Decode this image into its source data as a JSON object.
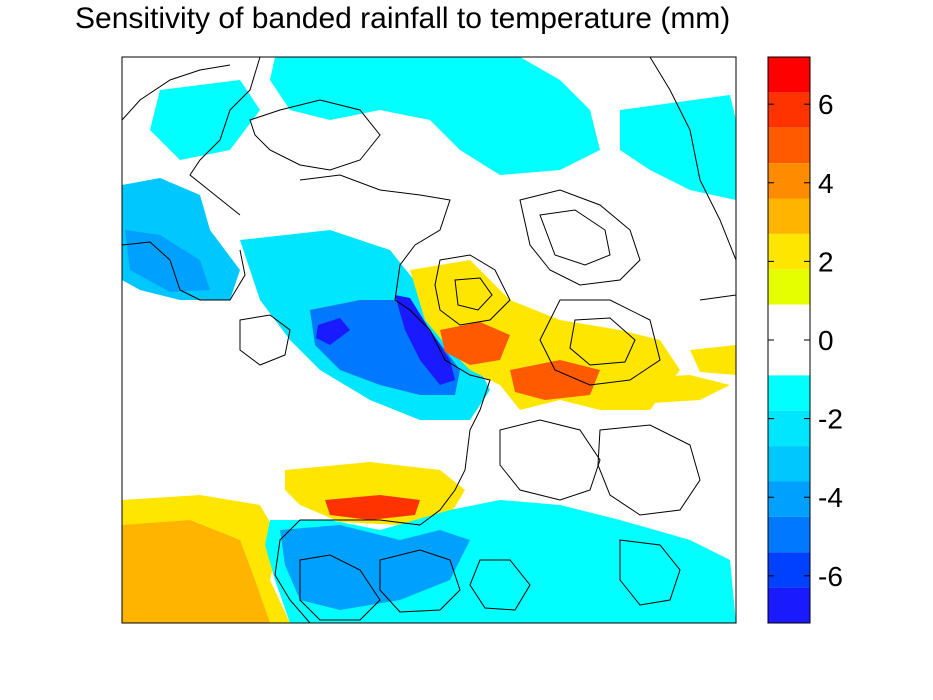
{
  "chart_data": {
    "type": "heatmap",
    "title": "Sensitivity of banded rainfall to temperature (mm)",
    "xlabel": "",
    "ylabel": "",
    "colorbar": {
      "range": [
        -7,
        7
      ],
      "ticks": [
        6,
        4,
        2,
        0,
        -2,
        -4,
        -6
      ],
      "tick_labels": [
        "6",
        "4",
        "2",
        "0",
        "-2",
        "-4",
        "-6"
      ],
      "bands": [
        {
          "from": 6.3,
          "to": 7.2,
          "color": "#ff0000"
        },
        {
          "from": 5.4,
          "to": 6.3,
          "color": "#ff3300"
        },
        {
          "from": 4.5,
          "to": 5.4,
          "color": "#ff5a00"
        },
        {
          "from": 3.6,
          "to": 4.5,
          "color": "#ff8c00"
        },
        {
          "from": 2.7,
          "to": 3.6,
          "color": "#ffb400"
        },
        {
          "from": 1.8,
          "to": 2.7,
          "color": "#ffe600"
        },
        {
          "from": 0.9,
          "to": 1.8,
          "color": "#e6ff00"
        },
        {
          "from": -0.9,
          "to": 0.9,
          "color": "#ffffff"
        },
        {
          "from": -1.8,
          "to": -0.9,
          "color": "#00ffff"
        },
        {
          "from": -2.7,
          "to": -1.8,
          "color": "#00e6ff"
        },
        {
          "from": -3.6,
          "to": -2.7,
          "color": "#00c8ff"
        },
        {
          "from": -4.5,
          "to": -3.6,
          "color": "#00a0ff"
        },
        {
          "from": -5.4,
          "to": -4.5,
          "color": "#0078ff"
        },
        {
          "from": -6.3,
          "to": -5.4,
          "color": "#0040ff"
        },
        {
          "from": -7.2,
          "to": -6.3,
          "color": "#1a1aff"
        }
      ]
    },
    "regions": [
      {
        "name": "southwest-positive",
        "value": 3.5,
        "color": "#ffb400"
      },
      {
        "name": "southwest-positive-edge",
        "value": 2.2,
        "color": "#ffe600"
      },
      {
        "name": "south-central-band",
        "value": 5.5,
        "color": "#ff3300"
      },
      {
        "name": "south-central-band-edge",
        "value": 2.3,
        "color": "#ffe600"
      },
      {
        "name": "central-east-positive",
        "value": 4.8,
        "color": "#ff5a00"
      },
      {
        "name": "central-east-positive-edge",
        "value": 2.5,
        "color": "#ffe600"
      },
      {
        "name": "central-negative-core",
        "value": -6.5,
        "color": "#1a1aff"
      },
      {
        "name": "central-negative",
        "value": -4.5,
        "color": "#0078ff"
      },
      {
        "name": "central-negative-edge",
        "value": -2.0,
        "color": "#00e6ff"
      },
      {
        "name": "northwest-negative",
        "value": -3.5,
        "color": "#00c8ff"
      },
      {
        "name": "north-negative",
        "value": -1.8,
        "color": "#00ffff"
      },
      {
        "name": "south-negative",
        "value": -1.5,
        "color": "#00ffff"
      },
      {
        "name": "south-negative-core",
        "value": -3.8,
        "color": "#00a0ff"
      }
    ],
    "legend": "right",
    "grid": false
  }
}
